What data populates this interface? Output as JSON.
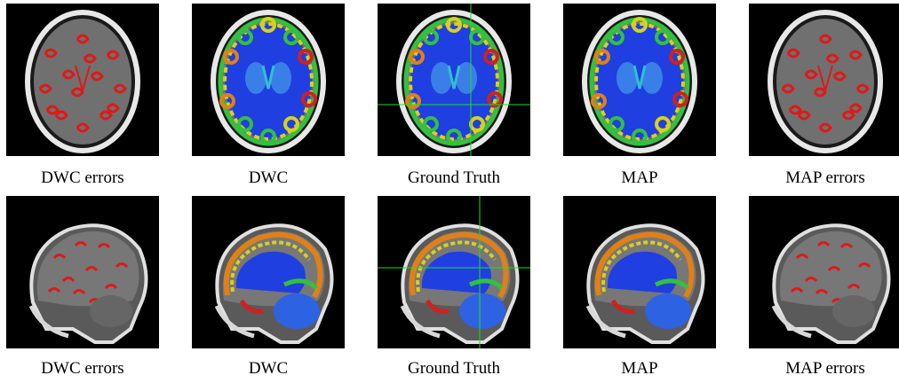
{
  "figure": {
    "rows": [
      {
        "view": "axial",
        "panels": [
          {
            "caption": "DWC errors",
            "style": "errors",
            "crosshair": false
          },
          {
            "caption": "DWC",
            "style": "segmentation",
            "crosshair": false
          },
          {
            "caption": "Ground Truth",
            "style": "segmentation",
            "crosshair": true
          },
          {
            "caption": "MAP",
            "style": "segmentation",
            "crosshair": false
          },
          {
            "caption": "MAP errors",
            "style": "errors",
            "crosshair": false
          }
        ]
      },
      {
        "view": "sagittal",
        "panels": [
          {
            "caption": "DWC errors",
            "style": "errors",
            "crosshair": false
          },
          {
            "caption": "DWC",
            "style": "segmentation",
            "crosshair": false
          },
          {
            "caption": "Ground Truth",
            "style": "segmentation",
            "crosshair": true
          },
          {
            "caption": "MAP",
            "style": "segmentation",
            "crosshair": false
          },
          {
            "caption": "MAP errors",
            "style": "errors",
            "crosshair": false
          }
        ]
      }
    ],
    "colors": {
      "background": "#000000",
      "error": "#e01818",
      "crosshair": "#22dd22",
      "white_matter": "#1f3fe0",
      "deep_gray": "#3a7fe8",
      "cerebellum": "#2d62e2",
      "cortex_green": "#33c040",
      "cortex_yellow": "#d8d020",
      "cortex_orange": "#e08018",
      "cortex_red": "#d02020",
      "cortex_cyan": "#30c0d0"
    }
  }
}
